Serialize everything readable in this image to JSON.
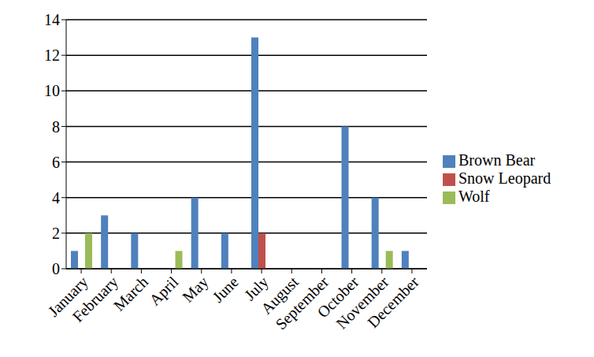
{
  "chart_data": {
    "type": "bar",
    "categories": [
      "January",
      "February",
      "March",
      "April",
      "May",
      "June",
      "July",
      "August",
      "September",
      "October",
      "November",
      "December"
    ],
    "series": [
      {
        "name": "Brown Bear",
        "color": "#4f81bd",
        "values": [
          1,
          3,
          2,
          0,
          4,
          2,
          13,
          0,
          0,
          8,
          4,
          1
        ]
      },
      {
        "name": "Snow Leopard",
        "color": "#c0504d",
        "values": [
          0,
          0,
          0,
          0,
          0,
          0,
          2,
          0,
          0,
          0,
          0,
          0
        ]
      },
      {
        "name": "Wolf",
        "color": "#9bbb59",
        "values": [
          2,
          0,
          0,
          1,
          0,
          0,
          0,
          0,
          0,
          0,
          1,
          0
        ]
      }
    ],
    "ylim": [
      0,
      14
    ],
    "yticks": [
      0,
      2,
      4,
      6,
      8,
      10,
      12,
      14
    ],
    "grid": true,
    "legend": "right"
  }
}
